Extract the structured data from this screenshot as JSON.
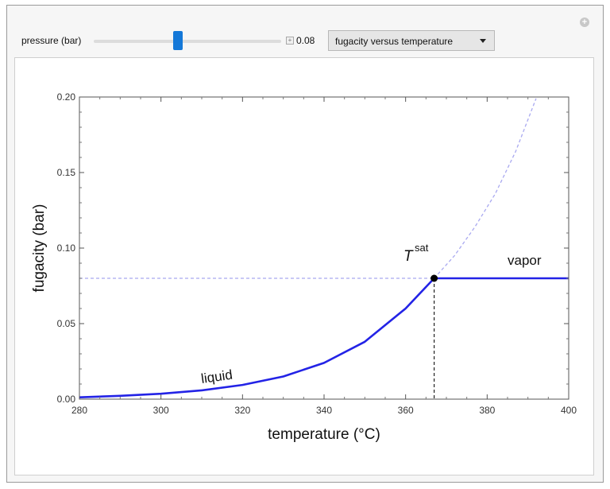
{
  "controls": {
    "slider_label": "pressure (bar)",
    "slider_value": "0.08",
    "slider_fraction": 0.45,
    "dropdown_selected": "fugacity versus temperature"
  },
  "colors": {
    "curve": "#2323e6",
    "dashed_guide": "#a9a9f0",
    "point": "#000000"
  },
  "chart_data": {
    "type": "line",
    "xlabel": "temperature (°C)",
    "ylabel": "fugacity (bar)",
    "xlim": [
      280,
      400
    ],
    "ylim": [
      0,
      0.2
    ],
    "xticks": [
      280,
      300,
      320,
      340,
      360,
      380,
      400
    ],
    "yticks": [
      0.0,
      0.05,
      0.1,
      0.15,
      0.2
    ],
    "ytick_labels": [
      "0.00",
      "0.05",
      "0.10",
      "0.15",
      "0.20"
    ],
    "saturation": {
      "T": 367,
      "f": 0.08
    },
    "series": [
      {
        "name": "liquid",
        "x": [
          280,
          290,
          300,
          310,
          320,
          330,
          340,
          350,
          360,
          367
        ],
        "y": [
          0.0012,
          0.0022,
          0.0036,
          0.0058,
          0.0094,
          0.015,
          0.024,
          0.038,
          0.06,
          0.08
        ]
      },
      {
        "name": "vapor",
        "x": [
          367,
          400
        ],
        "y": [
          0.08,
          0.08
        ]
      }
    ],
    "extrapolation": {
      "x": [
        367,
        372,
        377,
        382,
        387,
        392
      ],
      "y": [
        0.08,
        0.095,
        0.114,
        0.136,
        0.164,
        0.199
      ]
    },
    "annotations": {
      "liquid": "liquid",
      "vapor": "vapor",
      "tsat_main": "T",
      "tsat_sup": "sat"
    }
  }
}
